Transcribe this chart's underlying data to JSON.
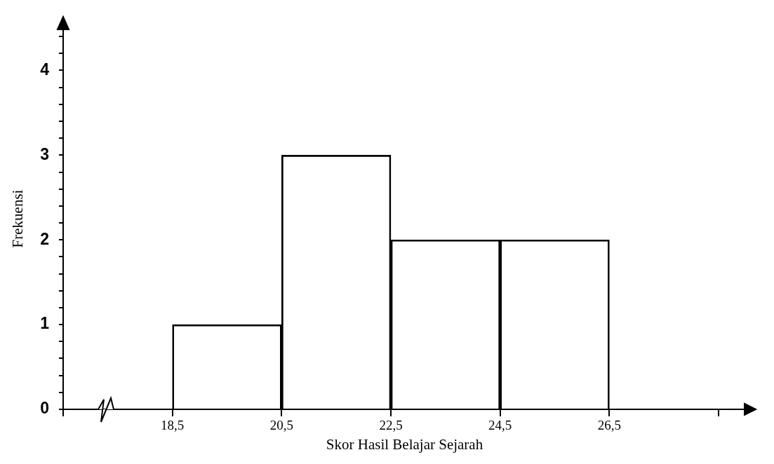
{
  "chart_data": {
    "type": "histogram",
    "xlabel": "Skor Hasil Belajar Sejarah",
    "ylabel": "Frekuensi",
    "bins": [
      18.5,
      20.5,
      22.5,
      24.5,
      26.5
    ],
    "values": [
      1,
      3,
      2,
      2
    ],
    "color": "#000000",
    "xlim": [
      16.5,
      29
    ],
    "xticks": [
      {
        "value": 16.5,
        "label": null
      },
      {
        "value": 18.5,
        "label": "18,5"
      },
      {
        "value": 20.5,
        "label": "20,5"
      },
      {
        "value": 22.5,
        "label": "22,5"
      },
      {
        "value": 24.5,
        "label": "24,5"
      },
      {
        "value": 26.5,
        "label": "26,5"
      },
      {
        "value": 28.5,
        "label": null
      }
    ],
    "ylim": [
      0,
      4.5
    ],
    "yticks": [
      0,
      {
        "value": 0.2,
        "label": null
      },
      {
        "value": 0.4,
        "label": null
      },
      {
        "value": 0.6,
        "label": null
      },
      {
        "value": 0.8,
        "label": null
      },
      1,
      {
        "value": 1.2,
        "label": null
      },
      {
        "value": 1.4,
        "label": null
      },
      {
        "value": 1.6,
        "label": null
      },
      {
        "value": 1.8,
        "label": null
      },
      2,
      {
        "value": 2.2,
        "label": null
      },
      {
        "value": 2.4,
        "label": null
      },
      {
        "value": 2.6,
        "label": null
      },
      {
        "value": 2.8,
        "label": null
      },
      3,
      {
        "value": 3.2,
        "label": null
      },
      {
        "value": 3.4,
        "label": null
      },
      {
        "value": 3.6,
        "label": null
      },
      {
        "value": 3.8,
        "label": null
      },
      4,
      {
        "value": 4.2,
        "label": null
      },
      {
        "value": 4.4,
        "label": null
      }
    ],
    "grid": false,
    "legend": false
  }
}
